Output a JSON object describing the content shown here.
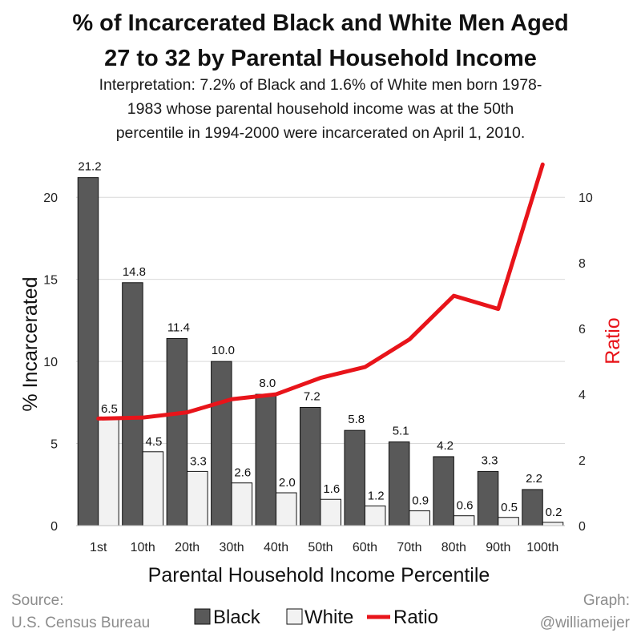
{
  "header": {
    "title_line1": "% of Incarcerated Black and White Men Aged",
    "title_line2": "27 to 32 by Parental Household Income",
    "subtitle_line1": "Interpretation: 7.2% of Black and 1.6% of White men born 1978-",
    "subtitle_line2": "1983 whose parental household income was at the 50th",
    "subtitle_line3": "percentile in 1994-2000 were incarcerated on April 1, 2010."
  },
  "footer": {
    "source_line1": "Source:",
    "source_line2": "U.S. Census Bureau",
    "graph_line1": "Graph:",
    "graph_line2": "@williameijer"
  },
  "chart_data": {
    "type": "bar",
    "categories": [
      "1st",
      "10th",
      "20th",
      "30th",
      "40th",
      "50th",
      "60th",
      "70th",
      "80th",
      "90th",
      "100th"
    ],
    "series": [
      {
        "name": "Black",
        "values": [
          21.2,
          14.8,
          11.4,
          10.0,
          8.0,
          7.2,
          5.8,
          5.1,
          4.2,
          3.3,
          2.2
        ],
        "color": "#595959"
      },
      {
        "name": "White",
        "values": [
          6.5,
          4.5,
          3.3,
          2.6,
          2.0,
          1.6,
          1.2,
          0.9,
          0.6,
          0.5,
          0.2
        ],
        "color": "#f2f2f2"
      }
    ],
    "line_series": {
      "name": "Ratio",
      "axis": "right",
      "values": [
        3.26,
        3.29,
        3.45,
        3.85,
        4.0,
        4.5,
        4.83,
        5.67,
        7.0,
        6.6,
        11.0
      ],
      "color": "#e8141a"
    },
    "xlabel": "Parental Household Income Percentile",
    "ylabel": "% Incarcerated",
    "y2label": "Ratio",
    "ylim": [
      0,
      22.5
    ],
    "yticks": [
      0,
      5,
      10,
      15,
      20
    ],
    "y2lim": [
      0,
      11.25
    ],
    "y2ticks": [
      0,
      2,
      4,
      6,
      8,
      10
    ],
    "grid": true,
    "legend_position": "bottom-center"
  }
}
